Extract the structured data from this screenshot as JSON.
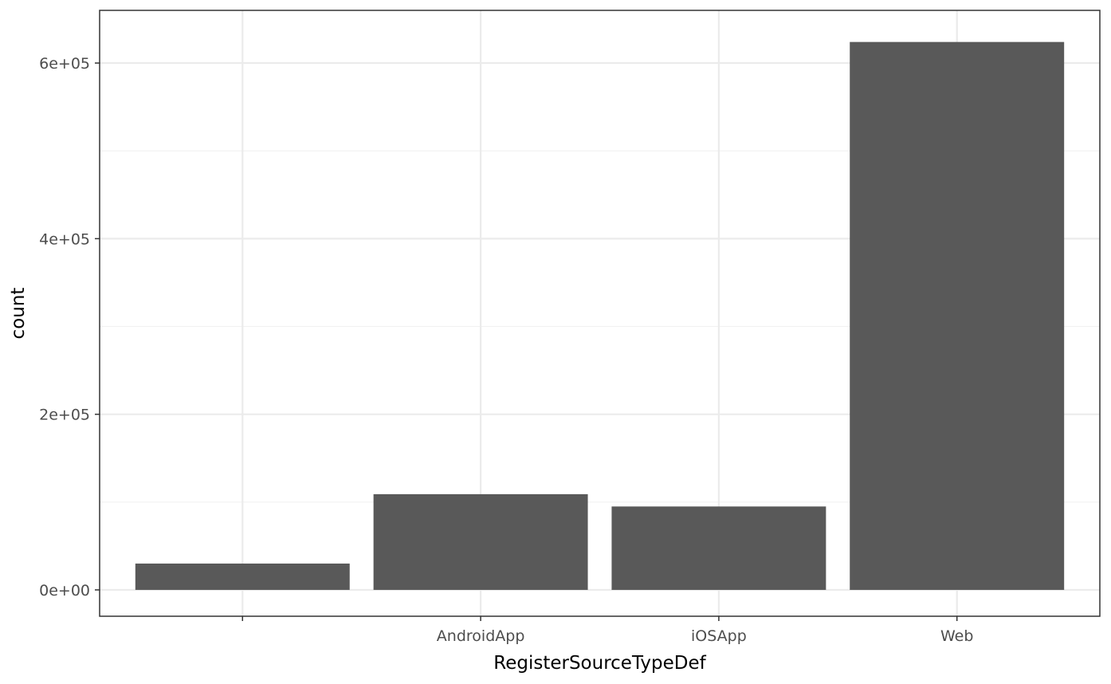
{
  "chart_data": {
    "type": "bar",
    "categories": [
      "",
      "AndroidApp",
      "iOSApp",
      "Web"
    ],
    "values": [
      30000,
      109000,
      95000,
      624000
    ],
    "title": "",
    "xlabel": "RegisterSourceTypeDef",
    "ylabel": "count",
    "ylim": [
      -30000,
      660000
    ],
    "yticks": [
      0,
      200000,
      400000,
      600000
    ],
    "ytick_labels": [
      "0e+00",
      "2e+05",
      "4e+05",
      "6e+05"
    ],
    "grid": true,
    "legend": "none",
    "colors": {
      "bar": "#595959",
      "grid_major": "#ebebeb",
      "grid_minor": "#f2f2f2",
      "panel_border": "#333333",
      "tick_text": "#4d4d4d"
    }
  }
}
